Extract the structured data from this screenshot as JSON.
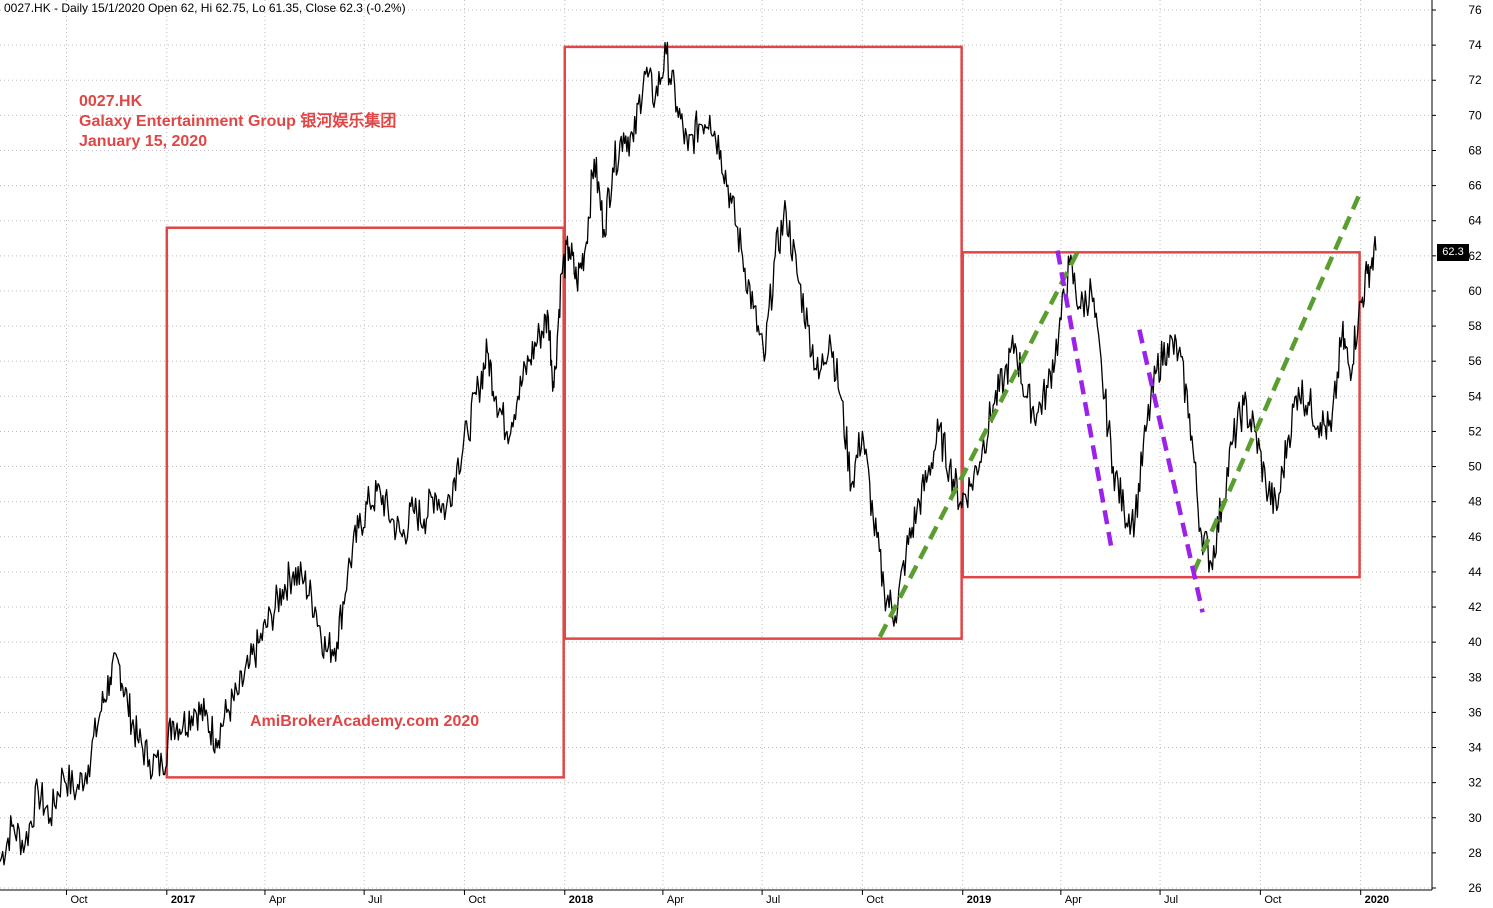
{
  "header": {
    "text": "0027.HK - Daily 15/1/2020 Open 62, Hi 62.75, Lo 61.35, Close 62.3 (-0.2%)"
  },
  "annotations": {
    "ticker": "0027.HK",
    "company": "Galaxy Entertainment Group  银河娱乐集团",
    "date": "January 15, 2020",
    "watermark": "AmiBrokerAcademy.com   2020"
  },
  "last_price_label": "62.3",
  "colors": {
    "price": "#000000",
    "box": "#e04646",
    "uptrend": "#5a9e2f",
    "downtrend": "#9b22e8",
    "grid": "#bdbdbd",
    "label_bg": "#000000"
  },
  "chart_data": {
    "type": "line",
    "title": "0027.HK - Daily 15/1/2020 Open 62, Hi 62.75, Lo 61.35, Close 62.3 (-0.2%)",
    "ylim": [
      26,
      76
    ],
    "y_ticks": [
      26,
      28,
      30,
      32,
      34,
      36,
      38,
      40,
      42,
      44,
      46,
      48,
      50,
      52,
      54,
      56,
      58,
      60,
      62,
      64,
      66,
      68,
      70,
      72,
      74,
      76
    ],
    "x_range": [
      "2016-08-01",
      "2020-02-29"
    ],
    "x_ticks": [
      {
        "date": "2016-10-01",
        "label": "Oct",
        "bold": false
      },
      {
        "date": "2017-01-01",
        "label": "2017",
        "bold": true
      },
      {
        "date": "2017-04-01",
        "label": "Apr",
        "bold": false
      },
      {
        "date": "2017-07-01",
        "label": "Jul",
        "bold": false
      },
      {
        "date": "2017-10-01",
        "label": "Oct",
        "bold": false
      },
      {
        "date": "2018-01-01",
        "label": "2018",
        "bold": true
      },
      {
        "date": "2018-04-01",
        "label": "Apr",
        "bold": false
      },
      {
        "date": "2018-07-01",
        "label": "Jul",
        "bold": false
      },
      {
        "date": "2018-10-01",
        "label": "Oct",
        "bold": false
      },
      {
        "date": "2019-01-01",
        "label": "2019",
        "bold": true
      },
      {
        "date": "2019-04-01",
        "label": "Apr",
        "bold": false
      },
      {
        "date": "2019-07-01",
        "label": "Jul",
        "bold": false
      },
      {
        "date": "2019-10-01",
        "label": "Oct",
        "bold": false
      },
      {
        "date": "2020-01-01",
        "label": "2020",
        "bold": true
      }
    ],
    "grid": true,
    "series": [
      {
        "points": [
          [
            "2016-08-01",
            27.5
          ],
          [
            "2016-08-12",
            29.5
          ],
          [
            "2016-08-24",
            28.5
          ],
          [
            "2016-09-05",
            31.5
          ],
          [
            "2016-09-16",
            30.0
          ],
          [
            "2016-09-28",
            32.5
          ],
          [
            "2016-10-10",
            31.5
          ],
          [
            "2016-10-21",
            33.0
          ],
          [
            "2016-11-01",
            36.0
          ],
          [
            "2016-11-10",
            38.0
          ],
          [
            "2016-11-18",
            38.8
          ],
          [
            "2016-11-26",
            36.5
          ],
          [
            "2016-12-05",
            34.5
          ],
          [
            "2016-12-16",
            33.3
          ],
          [
            "2016-12-28",
            32.9
          ],
          [
            "2017-01-06",
            35.5
          ],
          [
            "2017-01-16",
            35.3
          ],
          [
            "2017-01-26",
            36.2
          ],
          [
            "2017-02-05",
            35.8
          ],
          [
            "2017-02-15",
            34.5
          ],
          [
            "2017-02-25",
            36.0
          ],
          [
            "2017-03-07",
            37.0
          ],
          [
            "2017-03-17",
            38.5
          ],
          [
            "2017-03-27",
            40.0
          ],
          [
            "2017-04-07",
            41.5
          ],
          [
            "2017-04-17",
            43.0
          ],
          [
            "2017-04-27",
            44.0
          ],
          [
            "2017-05-07",
            43.5
          ],
          [
            "2017-05-17",
            42.0
          ],
          [
            "2017-05-27",
            39.5
          ],
          [
            "2017-06-06",
            40.0
          ],
          [
            "2017-06-16",
            44.0
          ],
          [
            "2017-06-26",
            46.5
          ],
          [
            "2017-07-06",
            48.0
          ],
          [
            "2017-07-16",
            48.5
          ],
          [
            "2017-07-26",
            47.0
          ],
          [
            "2017-08-05",
            46.0
          ],
          [
            "2017-08-15",
            47.5
          ],
          [
            "2017-08-25",
            47.0
          ],
          [
            "2017-09-04",
            48.5
          ],
          [
            "2017-09-14",
            47.5
          ],
          [
            "2017-09-24",
            50.0
          ],
          [
            "2017-10-04",
            52.0
          ],
          [
            "2017-10-14",
            54.5
          ],
          [
            "2017-10-22",
            56.5
          ],
          [
            "2017-10-30",
            54.0
          ],
          [
            "2017-11-09",
            52.0
          ],
          [
            "2017-11-19",
            54.0
          ],
          [
            "2017-11-29",
            56.0
          ],
          [
            "2017-12-09",
            57.5
          ],
          [
            "2017-12-17",
            58.5
          ],
          [
            "2017-12-22",
            54.5
          ],
          [
            "2017-12-29",
            61.0
          ],
          [
            "2018-01-05",
            62.5
          ],
          [
            "2018-01-12",
            60.5
          ],
          [
            "2018-01-20",
            62.5
          ],
          [
            "2018-01-28",
            67.5
          ],
          [
            "2018-02-06",
            63.5
          ],
          [
            "2018-02-14",
            67.0
          ],
          [
            "2018-02-24",
            69.0
          ],
          [
            "2018-03-05",
            68.5
          ],
          [
            "2018-03-15",
            72.5
          ],
          [
            "2018-03-25",
            71.0
          ],
          [
            "2018-04-04",
            73.5
          ],
          [
            "2018-04-14",
            70.5
          ],
          [
            "2018-04-24",
            68.0
          ],
          [
            "2018-05-04",
            69.5
          ],
          [
            "2018-05-14",
            70.0
          ],
          [
            "2018-05-24",
            68.0
          ],
          [
            "2018-06-03",
            65.0
          ],
          [
            "2018-06-13",
            62.0
          ],
          [
            "2018-06-23",
            59.0
          ],
          [
            "2018-07-03",
            56.0
          ],
          [
            "2018-07-13",
            62.0
          ],
          [
            "2018-07-23",
            64.5
          ],
          [
            "2018-08-02",
            61.0
          ],
          [
            "2018-08-12",
            58.0
          ],
          [
            "2018-08-22",
            55.0
          ],
          [
            "2018-09-01",
            57.5
          ],
          [
            "2018-09-11",
            54.0
          ],
          [
            "2018-09-21",
            49.0
          ],
          [
            "2018-10-01",
            52.0
          ],
          [
            "2018-10-11",
            47.0
          ],
          [
            "2018-10-21",
            43.0
          ],
          [
            "2018-10-31",
            41.5
          ],
          [
            "2018-11-10",
            45.0
          ],
          [
            "2018-11-20",
            47.5
          ],
          [
            "2018-11-30",
            49.5
          ],
          [
            "2018-12-10",
            52.0
          ],
          [
            "2018-12-20",
            50.0
          ],
          [
            "2018-12-30",
            48.0
          ],
          [
            "2019-01-09",
            49.0
          ],
          [
            "2019-01-19",
            51.0
          ],
          [
            "2019-01-29",
            53.5
          ],
          [
            "2019-02-08",
            55.0
          ],
          [
            "2019-02-18",
            57.0
          ],
          [
            "2019-02-28",
            54.0
          ],
          [
            "2019-03-10",
            53.0
          ],
          [
            "2019-03-20",
            54.5
          ],
          [
            "2019-03-30",
            57.5
          ],
          [
            "2019-04-09",
            61.5
          ],
          [
            "2019-04-19",
            59.0
          ],
          [
            "2019-04-29",
            60.0
          ],
          [
            "2019-05-09",
            55.0
          ],
          [
            "2019-05-19",
            50.0
          ],
          [
            "2019-05-29",
            47.5
          ],
          [
            "2019-06-08",
            47.0
          ],
          [
            "2019-06-18",
            52.0
          ],
          [
            "2019-06-28",
            55.5
          ],
          [
            "2019-07-08",
            57.0
          ],
          [
            "2019-07-18",
            56.5
          ],
          [
            "2019-07-28",
            53.0
          ],
          [
            "2019-08-07",
            46.5
          ],
          [
            "2019-08-17",
            44.5
          ],
          [
            "2019-08-27",
            48.0
          ],
          [
            "2019-09-06",
            51.5
          ],
          [
            "2019-09-16",
            53.5
          ],
          [
            "2019-09-26",
            52.0
          ],
          [
            "2019-10-06",
            49.0
          ],
          [
            "2019-10-16",
            47.5
          ],
          [
            "2019-10-26",
            51.5
          ],
          [
            "2019-11-05",
            54.5
          ],
          [
            "2019-11-15",
            53.5
          ],
          [
            "2019-11-25",
            52.5
          ],
          [
            "2019-12-05",
            52.0
          ],
          [
            "2019-12-15",
            57.5
          ],
          [
            "2019-12-22",
            55.5
          ],
          [
            "2019-12-30",
            58.5
          ],
          [
            "2020-01-07",
            61.0
          ],
          [
            "2020-01-15",
            62.3
          ]
        ]
      }
    ],
    "boxes": [
      {
        "x0": "2017-01-01",
        "x1": "2017-12-31",
        "y0": 32.3,
        "y1": 63.6
      },
      {
        "x0": "2018-01-01",
        "x1": "2018-12-31",
        "y0": 40.2,
        "y1": 73.9
      },
      {
        "x0": "2019-01-01",
        "x1": "2019-12-31",
        "y0": 43.7,
        "y1": 62.2
      }
    ],
    "trend_lines": [
      {
        "kind": "uptrend",
        "x0": "2018-10-17",
        "y0": 40.3,
        "x1": "2019-04-17",
        "y1": 62.3
      },
      {
        "kind": "uptrend",
        "x0": "2019-08-01",
        "y0": 44.0,
        "x1": "2020-01-02",
        "y1": 65.8
      },
      {
        "kind": "downtrend",
        "x0": "2019-03-29",
        "y0": 62.3,
        "x1": "2019-05-17",
        "y1": 45.5
      },
      {
        "kind": "downtrend",
        "x0": "2019-06-12",
        "y0": 57.8,
        "x1": "2019-08-09",
        "y1": 41.7
      }
    ]
  }
}
